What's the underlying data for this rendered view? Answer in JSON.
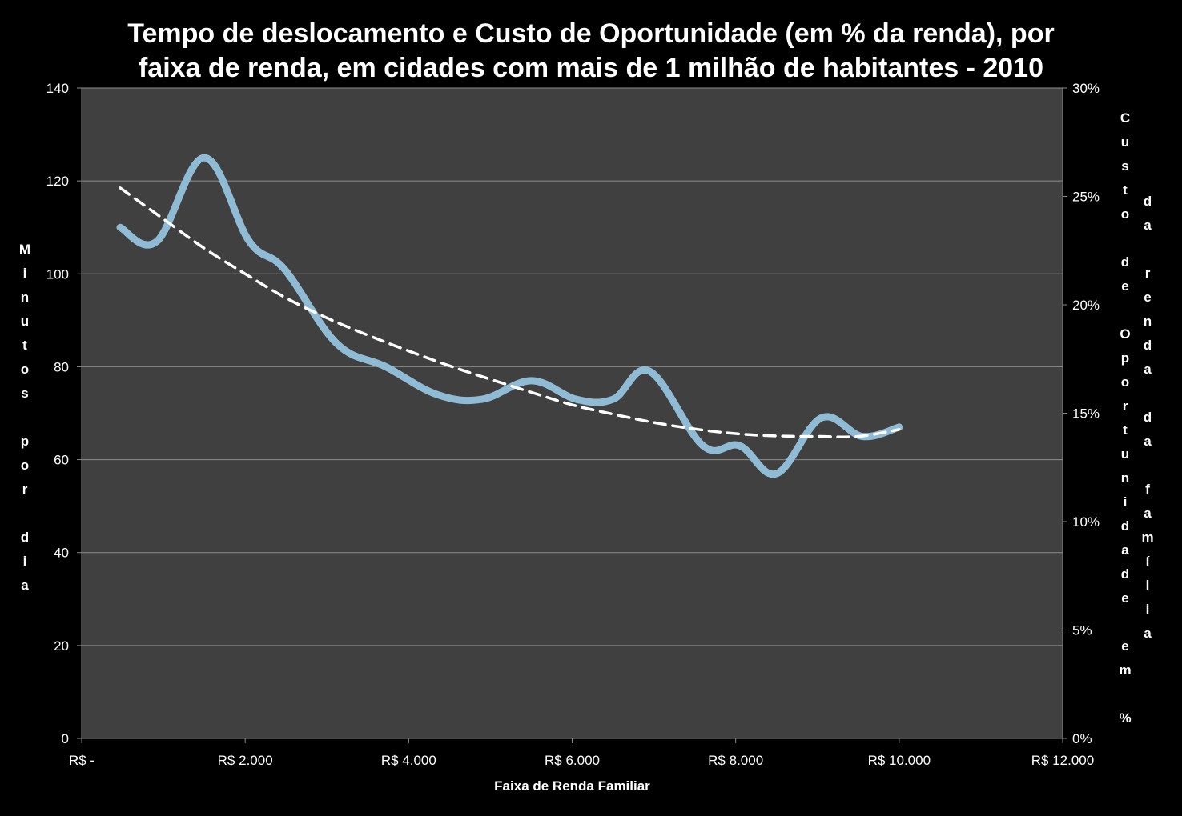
{
  "chart_data": {
    "type": "line",
    "title": "Tempo de deslocamento e Custo de Oportunidade (em % da renda), por faixa de renda, em cidades com mais de 1 milhão de habitantes - 2010",
    "title_lines": [
      "Tempo de deslocamento e Custo de Oportunidade (em % da renda), por",
      "faixa de renda, em cidades com mais de 1 milhão de habitantes - 2010"
    ],
    "xlabel": "Faixa de Renda Familiar",
    "ylabel": "Minutos por dia",
    "y2label": "Custo de Oportunidade em % da renda da família",
    "xlim": [
      0,
      12000
    ],
    "ylim": [
      0,
      140
    ],
    "y2lim": [
      0,
      0.3
    ],
    "x_ticks": [
      0,
      2000,
      4000,
      6000,
      8000,
      10000,
      12000
    ],
    "x_tick_labels": [
      "R$ -",
      "R$ 2.000",
      "R$ 4.000",
      "R$ 6.000",
      "R$ 8.000",
      "R$ 10.000",
      "R$ 12.000"
    ],
    "y_ticks": [
      0,
      20,
      40,
      60,
      80,
      100,
      120,
      140
    ],
    "y_tick_labels": [
      "0",
      "20",
      "40",
      "60",
      "80",
      "100",
      "120",
      "140"
    ],
    "y2_ticks": [
      0,
      0.05,
      0.1,
      0.15,
      0.2,
      0.25,
      0.3
    ],
    "y2_tick_labels": [
      "0%",
      "5%",
      "10%",
      "15%",
      "20%",
      "25%",
      "30%"
    ],
    "grid": true,
    "legend": "none",
    "series": [
      {
        "axis": "y",
        "style": "smooth-solid",
        "color": "#8fbcd4",
        "x": [
          470,
          920,
          1500,
          2050,
          2480,
          3120,
          3720,
          4350,
          4900,
          5500,
          6050,
          6500,
          6950,
          7600,
          8050,
          8500,
          9050,
          9550,
          10000
        ],
        "y": [
          110,
          107,
          125,
          107,
          101,
          85,
          80,
          74,
          73,
          77,
          73,
          73,
          79,
          63,
          63,
          57,
          69,
          65,
          67
        ]
      },
      {
        "axis": "y",
        "style": "smooth-dashed",
        "color": "#ffffff",
        "x": [
          470,
          1000,
          1500,
          2000,
          2500,
          3000,
          3500,
          4000,
          4500,
          5000,
          5500,
          6000,
          6500,
          7000,
          7500,
          8000,
          8500,
          9000,
          9500,
          10000
        ],
        "y": [
          118.5,
          111.8,
          105.5,
          100.0,
          94.8,
          90.5,
          86.8,
          83.4,
          80.2,
          77.3,
          74.5,
          71.8,
          69.8,
          68.0,
          66.6,
          65.6,
          65.1,
          65.0,
          65.0,
          66.5
        ]
      }
    ]
  }
}
